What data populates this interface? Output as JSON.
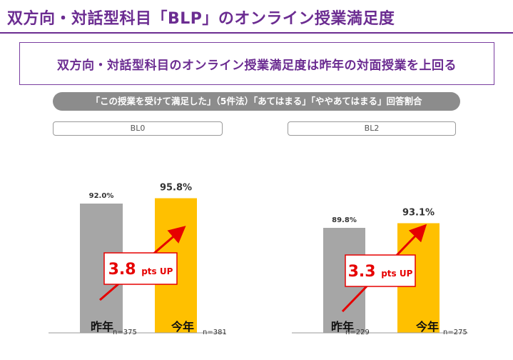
{
  "page": {
    "title": "双方向・対話型科目「BLP」のオンライン授業満足度",
    "callout": "双方向・対話型科目のオンライン授業満足度は昨年の対面授業を上回る",
    "question": "「この授業を受けて満足した」（5件法）「あてはまる」「ややあてはまる」回答割合"
  },
  "chart_data": [
    {
      "type": "bar",
      "title": "BL0",
      "categories": [
        "昨年",
        "今年"
      ],
      "n_labels": [
        "n=375",
        "n=381"
      ],
      "values": [
        92.0,
        95.8
      ],
      "value_labels": [
        "92.0%",
        "95.8%"
      ],
      "increase_label": {
        "number": "3.8",
        "suffix": "pts UP"
      },
      "colors": [
        "#a6a6a6",
        "#ffc000"
      ]
    },
    {
      "type": "bar",
      "title": "BL2",
      "categories": [
        "昨年",
        "今年"
      ],
      "n_labels": [
        "n=229",
        "n=275"
      ],
      "values": [
        89.8,
        93.1
      ],
      "value_labels": [
        "89.8%",
        "93.1%"
      ],
      "increase_label": {
        "number": "3.3",
        "suffix": "pts UP"
      },
      "colors": [
        "#a6a6a6",
        "#ffc000"
      ]
    }
  ],
  "colors": {
    "accent": "#6b2c91",
    "arrow": "#e60000",
    "last_year": "#a6a6a6",
    "this_year": "#ffc000"
  }
}
